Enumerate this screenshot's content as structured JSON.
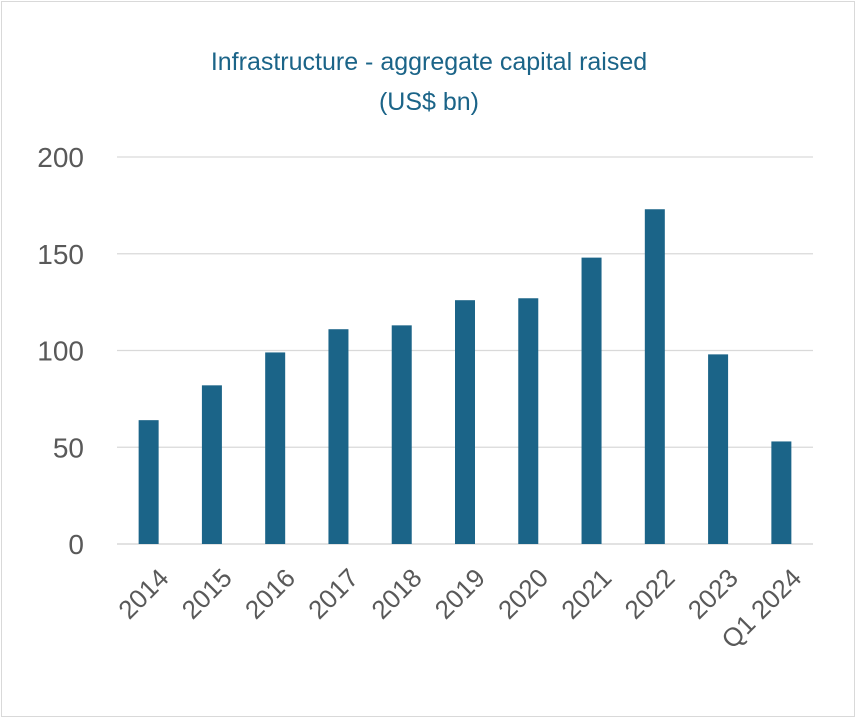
{
  "chart_data": {
    "type": "bar",
    "title": "Infrastructure - aggregate capital raised",
    "subtitle": "(US$ bn)",
    "categories": [
      "2014",
      "2015",
      "2016",
      "2017",
      "2018",
      "2019",
      "2020",
      "2021",
      "2022",
      "2023",
      "Q1 2024"
    ],
    "values": [
      64,
      82,
      99,
      111,
      113,
      126,
      127,
      148,
      173,
      98,
      53
    ],
    "ylim": [
      0,
      200
    ],
    "yticks": [
      "0",
      "50",
      "100",
      "150",
      "200"
    ],
    "grid": true,
    "legend": "none",
    "bar_color": "#1b6488",
    "grid_color": "#d9d9d9"
  }
}
